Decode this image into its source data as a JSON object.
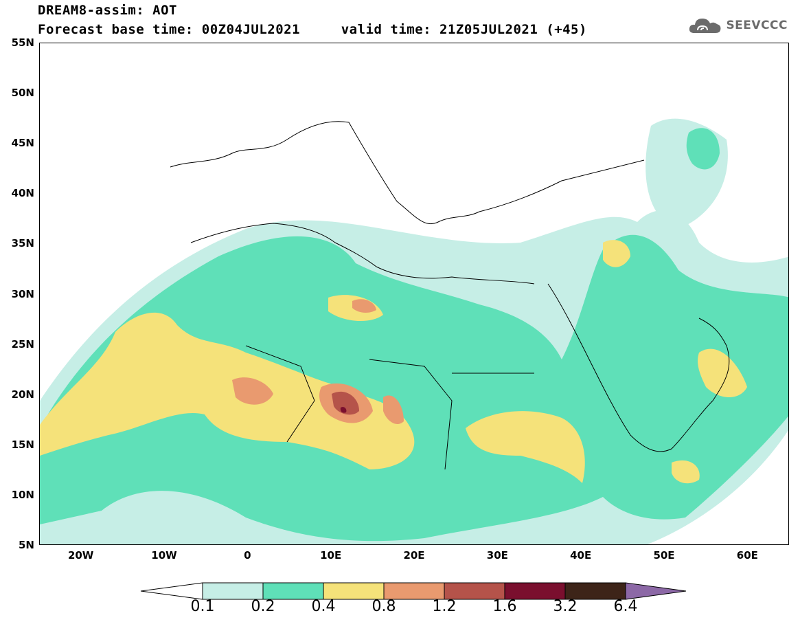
{
  "header": {
    "title_line1": "DREAM8-assim: AOT",
    "title_line2": "Forecast base time: 00Z04JUL2021     valid time: 21Z05JUL2021 (+45)",
    "logo_text": "SEEVCCC"
  },
  "map": {
    "lat_labels": [
      "55N",
      "50N",
      "45N",
      "40N",
      "35N",
      "30N",
      "25N",
      "20N",
      "15N",
      "10N",
      "5N"
    ],
    "lon_labels": [
      "20W",
      "10W",
      "0",
      "10E",
      "20E",
      "30E",
      "40E",
      "50E",
      "60E"
    ],
    "extent": {
      "lon": [
        -25,
        65
      ],
      "lat": [
        5,
        55
      ]
    }
  },
  "colorbar": {
    "labels": [
      "0.1",
      "0.2",
      "0.4",
      "0.8",
      "1.2",
      "1.6",
      "3.2",
      "6.4"
    ],
    "colors": [
      "#c6eee6",
      "#5fe0b8",
      "#f5e27a",
      "#e99a6f",
      "#b5534a",
      "#7a0f2e",
      "#3d2418",
      "#8c68a6"
    ],
    "under_color": "#ffffff"
  }
}
